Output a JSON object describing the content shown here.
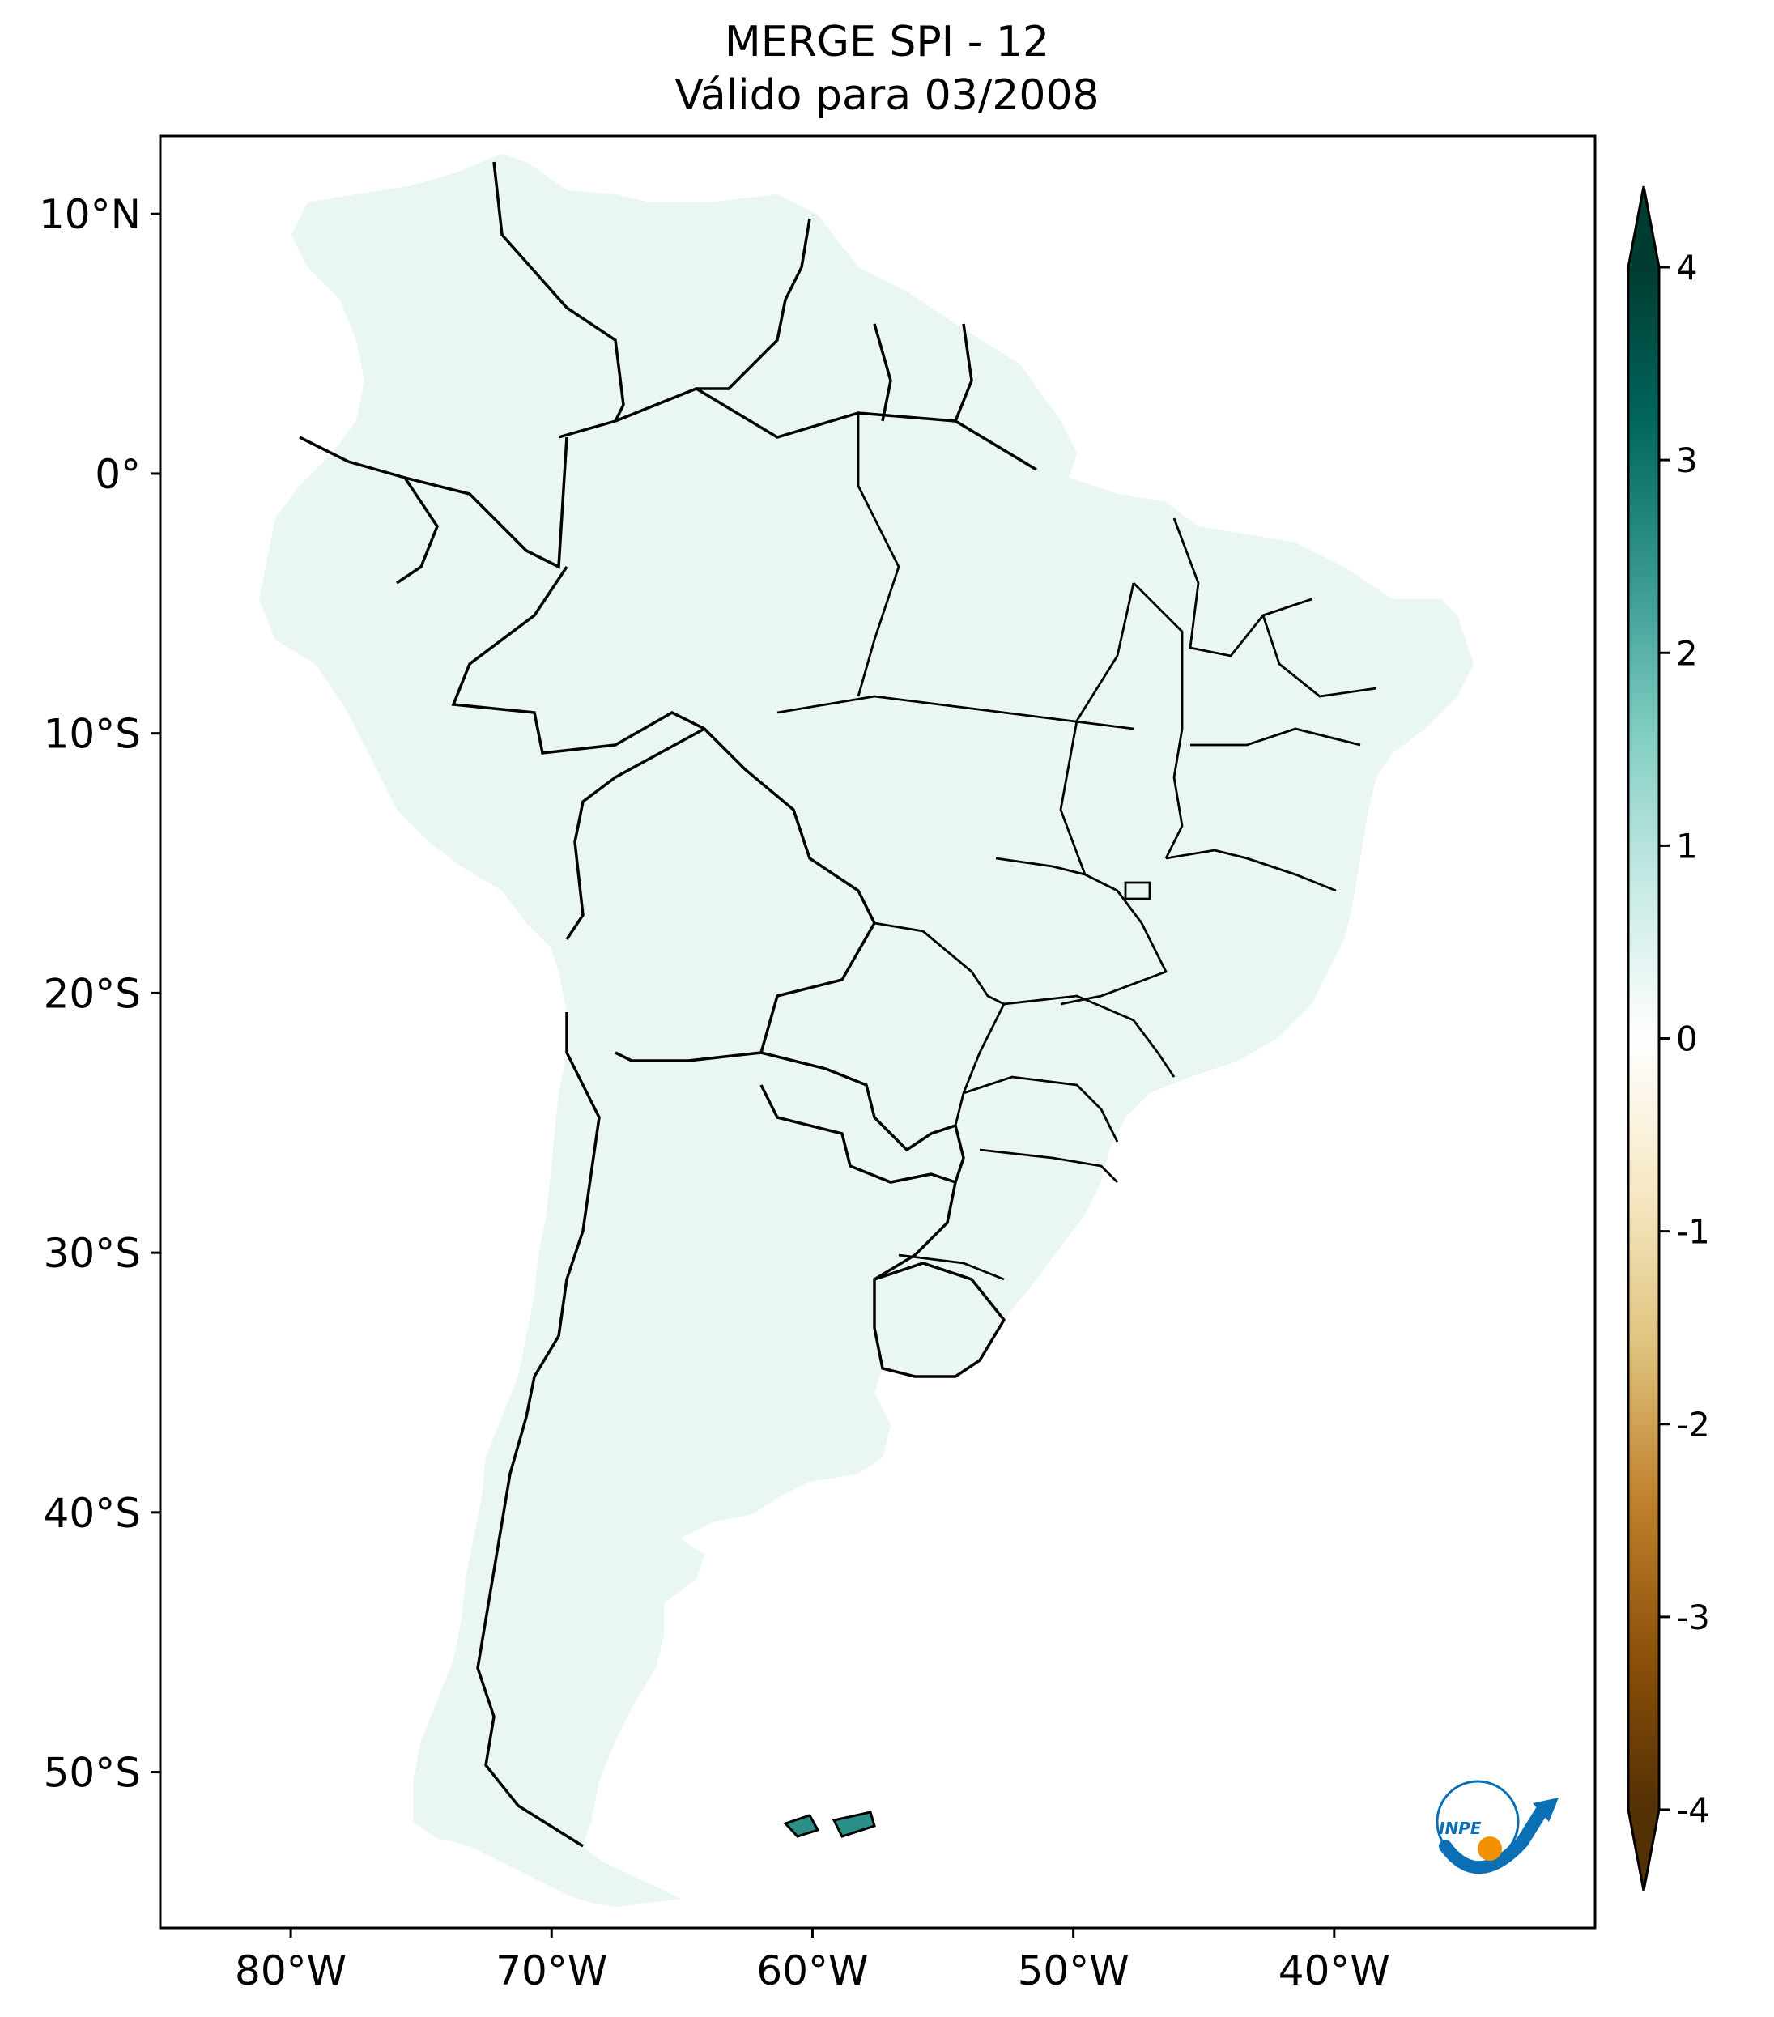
{
  "title": {
    "line1": "MERGE   SPI - 12",
    "line2": "Válido para 03/2008"
  },
  "map": {
    "lon_range": [
      -85,
      -30
    ],
    "lat_range": [
      -56,
      13
    ],
    "lon_ticks": [
      {
        "value": -80,
        "label": "80°W"
      },
      {
        "value": -70,
        "label": "70°W"
      },
      {
        "value": -60,
        "label": "60°W"
      },
      {
        "value": -50,
        "label": "50°W"
      },
      {
        "value": -40,
        "label": "40°W"
      }
    ],
    "lat_ticks": [
      {
        "value": 10,
        "label": "10°N"
      },
      {
        "value": 0,
        "label": "0°"
      },
      {
        "value": -10,
        "label": "10°S"
      },
      {
        "value": -20,
        "label": "20°S"
      },
      {
        "value": -30,
        "label": "30°S"
      },
      {
        "value": -40,
        "label": "40°S"
      },
      {
        "value": -50,
        "label": "50°S"
      }
    ]
  },
  "colorbar": {
    "range": [
      -4,
      4
    ],
    "extend": "both",
    "ticks": [
      {
        "value": 4,
        "label": "4"
      },
      {
        "value": 3,
        "label": "3"
      },
      {
        "value": 2,
        "label": "2"
      },
      {
        "value": 1,
        "label": "1"
      },
      {
        "value": 0,
        "label": "0"
      },
      {
        "value": -1,
        "label": "-1"
      },
      {
        "value": -2,
        "label": "-2"
      },
      {
        "value": -3,
        "label": "-3"
      },
      {
        "value": -4,
        "label": "-4"
      }
    ],
    "colors": [
      "#543005",
      "#8c510a",
      "#bf812d",
      "#dfc27d",
      "#f6e8c3",
      "#ffffff",
      "#c7eae5",
      "#80cdc1",
      "#35978f",
      "#01665e",
      "#003c30"
    ]
  },
  "logo": {
    "text": "INPE",
    "colors": {
      "blue": "#0a6fb5",
      "orange": "#f39200"
    }
  }
}
